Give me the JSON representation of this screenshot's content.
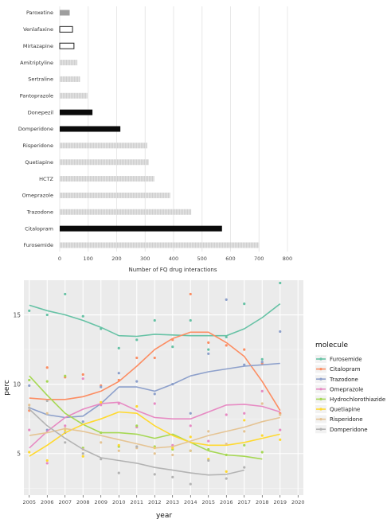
{
  "chart_data": [
    {
      "type": "bar",
      "orientation": "horizontal",
      "xlabel": "Number of FQ drug interactions",
      "ylabel": "",
      "xlim": [
        0,
        800
      ],
      "xticks": [
        0,
        100,
        200,
        300,
        400,
        500,
        600,
        700,
        800
      ],
      "grid": true,
      "categories": [
        "Paroxetine",
        "Venlafaxine",
        "Mirtazapine",
        "Amitriptyline",
        "Sertraline",
        "Pantoprazole",
        "Donepezil",
        "Domperidone",
        "Risperidone",
        "Quetiapine",
        "HCTZ",
        "Omeprazole",
        "Trazodone",
        "Citalopram",
        "Furosemide"
      ],
      "values": [
        35,
        45,
        50,
        62,
        72,
        97,
        115,
        213,
        308,
        313,
        332,
        388,
        462,
        570,
        700
      ],
      "bar_styles": [
        "gray-solid",
        "outline",
        "outline",
        "light-gray",
        "light-gray",
        "light-gray",
        "black",
        "black",
        "light-gray",
        "light-gray",
        "light-gray",
        "light-gray",
        "light-gray",
        "black",
        "light-gray"
      ]
    },
    {
      "type": "line",
      "xlabel": "year",
      "ylabel": "perc",
      "xlim": [
        2005,
        2020
      ],
      "ylim": [
        2,
        17.5
      ],
      "xticks": [
        2005,
        2006,
        2007,
        2008,
        2009,
        2010,
        2011,
        2012,
        2013,
        2014,
        2015,
        2016,
        2017,
        2018,
        2019,
        2020
      ],
      "yticks": [
        5,
        10,
        15
      ],
      "grid": true,
      "legend_title": "molecule",
      "legend_position": "right",
      "series": [
        {
          "name": "Furosemide",
          "color": "#66c2a5",
          "points": [
            [
              2005,
              15.3
            ],
            [
              2006,
              15.0
            ],
            [
              2007,
              16.5
            ],
            [
              2008,
              14.9
            ],
            [
              2009,
              14.0
            ],
            [
              2010,
              12.6
            ],
            [
              2011,
              13.2
            ],
            [
              2012,
              14.6
            ],
            [
              2013,
              12.7
            ],
            [
              2014,
              14.6
            ],
            [
              2015,
              12.5
            ],
            [
              2016,
              13.4
            ],
            [
              2017,
              15.8
            ],
            [
              2018,
              11.8
            ],
            [
              2019,
              17.3
            ]
          ],
          "trend": [
            [
              2005,
              15.7
            ],
            [
              2006,
              15.3
            ],
            [
              2007,
              15.0
            ],
            [
              2008,
              14.6
            ],
            [
              2009,
              14.1
            ],
            [
              2010,
              13.5
            ],
            [
              2011,
              13.45
            ],
            [
              2012,
              13.6
            ],
            [
              2013,
              13.55
            ],
            [
              2014,
              13.5
            ],
            [
              2015,
              13.5
            ],
            [
              2016,
              13.5
            ],
            [
              2017,
              14.0
            ],
            [
              2018,
              14.8
            ],
            [
              2019,
              15.8
            ]
          ]
        },
        {
          "name": "Citalopram",
          "color": "#fc8d62",
          "points": [
            [
              2005,
              8.1
            ],
            [
              2006,
              11.2
            ],
            [
              2007,
              10.5
            ],
            [
              2008,
              10.7
            ],
            [
              2009,
              9.9
            ],
            [
              2010,
              10.3
            ],
            [
              2011,
              11.9
            ],
            [
              2012,
              11.9
            ],
            [
              2013,
              13.2
            ],
            [
              2014,
              16.5
            ],
            [
              2015,
              13.0
            ],
            [
              2016,
              12.8
            ],
            [
              2017,
              12.5
            ],
            [
              2018,
              11.5
            ],
            [
              2019,
              7.9
            ]
          ],
          "trend": [
            [
              2005,
              9.0
            ],
            [
              2006,
              8.9
            ],
            [
              2007,
              8.9
            ],
            [
              2008,
              9.1
            ],
            [
              2009,
              9.5
            ],
            [
              2010,
              10.2
            ],
            [
              2011,
              11.3
            ],
            [
              2012,
              12.5
            ],
            [
              2013,
              13.3
            ],
            [
              2014,
              13.75
            ],
            [
              2015,
              13.75
            ],
            [
              2016,
              13.0
            ],
            [
              2017,
              12.0
            ],
            [
              2018,
              10.2
            ],
            [
              2019,
              8.1
            ]
          ]
        },
        {
          "name": "Trazodone",
          "color": "#8da0cb",
          "points": [
            [
              2005,
              9.9
            ],
            [
              2006,
              6.7
            ],
            [
              2007,
              6.5
            ],
            [
              2008,
              7.3
            ],
            [
              2009,
              9.8
            ],
            [
              2010,
              10.8
            ],
            [
              2011,
              10.2
            ],
            [
              2012,
              9.3
            ],
            [
              2013,
              10.0
            ],
            [
              2014,
              7.9
            ],
            [
              2015,
              12.2
            ],
            [
              2016,
              16.1
            ],
            [
              2017,
              11.4
            ],
            [
              2018,
              11.6
            ],
            [
              2019,
              13.8
            ]
          ],
          "trend": [
            [
              2005,
              8.3
            ],
            [
              2006,
              7.8
            ],
            [
              2007,
              7.6
            ],
            [
              2008,
              7.7
            ],
            [
              2009,
              8.6
            ],
            [
              2010,
              9.8
            ],
            [
              2011,
              9.8
            ],
            [
              2012,
              9.5
            ],
            [
              2013,
              10.0
            ],
            [
              2014,
              10.6
            ],
            [
              2015,
              10.9
            ],
            [
              2016,
              11.1
            ],
            [
              2017,
              11.3
            ],
            [
              2018,
              11.4
            ],
            [
              2019,
              11.5
            ]
          ]
        },
        {
          "name": "Omeprazole",
          "color": "#e78ac3",
          "points": [
            [
              2005,
              6.7
            ],
            [
              2006,
              4.3
            ],
            [
              2007,
              7.0
            ],
            [
              2008,
              10.4
            ],
            [
              2009,
              8.5
            ],
            [
              2010,
              8.6
            ],
            [
              2011,
              6.9
            ],
            [
              2012,
              8.6
            ],
            [
              2013,
              5.6
            ],
            [
              2014,
              7.0
            ],
            [
              2015,
              5.9
            ],
            [
              2016,
              7.8
            ],
            [
              2017,
              7.9
            ],
            [
              2018,
              9.5
            ],
            [
              2019,
              6.7
            ]
          ],
          "trend": [
            [
              2005,
              5.4
            ],
            [
              2006,
              6.6
            ],
            [
              2007,
              7.6
            ],
            [
              2008,
              8.2
            ],
            [
              2009,
              8.6
            ],
            [
              2010,
              8.7
            ],
            [
              2011,
              8.1
            ],
            [
              2012,
              7.6
            ],
            [
              2013,
              7.5
            ],
            [
              2014,
              7.5
            ],
            [
              2015,
              8.0
            ],
            [
              2016,
              8.5
            ],
            [
              2017,
              8.55
            ],
            [
              2018,
              8.4
            ],
            [
              2019,
              8.0
            ]
          ]
        },
        {
          "name": "Hydrochlorothiazide",
          "color": "#a6d854",
          "points": [
            [
              2005,
              10.3
            ],
            [
              2006,
              10.2
            ],
            [
              2007,
              10.6
            ],
            [
              2008,
              5.4
            ],
            [
              2009,
              6.5
            ],
            [
              2010,
              5.5
            ],
            [
              2011,
              7.0
            ],
            [
              2012,
              5.5
            ],
            [
              2013,
              5.3
            ],
            [
              2014,
              5.2
            ],
            [
              2015,
              5.3
            ],
            [
              2016,
              4.9
            ],
            [
              2017,
              5.6
            ],
            [
              2018,
              5.1
            ]
          ],
          "trend": [
            [
              2005,
              10.6
            ],
            [
              2006,
              9.2
            ],
            [
              2007,
              7.9
            ],
            [
              2008,
              7.1
            ],
            [
              2009,
              6.5
            ],
            [
              2010,
              6.5
            ],
            [
              2011,
              6.4
            ],
            [
              2012,
              6.1
            ],
            [
              2013,
              6.4
            ],
            [
              2014,
              5.8
            ],
            [
              2015,
              5.2
            ],
            [
              2016,
              4.9
            ],
            [
              2017,
              4.8
            ],
            [
              2018,
              4.6
            ]
          ]
        },
        {
          "name": "Quetiapine",
          "color": "#ffd92f",
          "points": [
            [
              2005,
              5.1
            ],
            [
              2006,
              4.5
            ],
            [
              2007,
              6.7
            ],
            [
              2008,
              4.8
            ],
            [
              2009,
              8.7
            ],
            [
              2010,
              5.6
            ],
            [
              2011,
              8.4
            ],
            [
              2012,
              5.4
            ],
            [
              2013,
              5.4
            ],
            [
              2014,
              6.2
            ],
            [
              2015,
              4.6
            ],
            [
              2016,
              3.7
            ],
            [
              2017,
              7.4
            ],
            [
              2018,
              6.3
            ],
            [
              2019,
              6.0
            ]
          ],
          "trend": [
            [
              2005,
              4.8
            ],
            [
              2006,
              5.6
            ],
            [
              2007,
              6.5
            ],
            [
              2008,
              7.1
            ],
            [
              2009,
              7.5
            ],
            [
              2010,
              8.0
            ],
            [
              2011,
              7.9
            ],
            [
              2012,
              7.0
            ],
            [
              2013,
              6.3
            ],
            [
              2014,
              5.8
            ],
            [
              2015,
              5.6
            ],
            [
              2016,
              5.6
            ],
            [
              2017,
              5.8
            ],
            [
              2018,
              6.1
            ],
            [
              2019,
              6.4
            ]
          ]
        },
        {
          "name": "Risperidone",
          "color": "#e5c494",
          "points": [
            [
              2005,
              8.5
            ],
            [
              2006,
              7.9
            ],
            [
              2007,
              6.8
            ],
            [
              2008,
              5.3
            ],
            [
              2009,
              5.8
            ],
            [
              2010,
              5.2
            ],
            [
              2011,
              5.4
            ],
            [
              2012,
              5.0
            ],
            [
              2013,
              4.9
            ],
            [
              2014,
              5.2
            ],
            [
              2015,
              6.6
            ],
            [
              2016,
              5.7
            ],
            [
              2017,
              6.6
            ],
            [
              2018,
              8.6
            ],
            [
              2019,
              7.8
            ]
          ],
          "trend": [
            [
              2005,
              6.3
            ],
            [
              2006,
              6.5
            ],
            [
              2007,
              6.8
            ],
            [
              2008,
              6.6
            ],
            [
              2009,
              6.3
            ],
            [
              2010,
              6.0
            ],
            [
              2011,
              5.7
            ],
            [
              2012,
              5.4
            ],
            [
              2013,
              5.5
            ],
            [
              2014,
              5.9
            ],
            [
              2015,
              6.3
            ],
            [
              2016,
              6.6
            ],
            [
              2017,
              6.9
            ],
            [
              2018,
              7.3
            ],
            [
              2019,
              7.6
            ]
          ]
        },
        {
          "name": "Domperidone",
          "color": "#b3b3b3",
          "points": [
            [
              2005,
              8.3
            ],
            [
              2006,
              8.8
            ],
            [
              2007,
              5.8
            ],
            [
              2008,
              5.0
            ],
            [
              2009,
              4.6
            ],
            [
              2010,
              3.6
            ],
            [
              2011,
              5.5
            ],
            [
              2012,
              3.5
            ],
            [
              2013,
              3.3
            ],
            [
              2014,
              2.8
            ],
            [
              2015,
              4.5
            ],
            [
              2016,
              3.2
            ],
            [
              2017,
              4.0
            ]
          ],
          "trend": [
            [
              2005,
              8.2
            ],
            [
              2006,
              7.0
            ],
            [
              2007,
              6.1
            ],
            [
              2008,
              5.3
            ],
            [
              2009,
              4.7
            ],
            [
              2010,
              4.5
            ],
            [
              2011,
              4.3
            ],
            [
              2012,
              4.0
            ],
            [
              2013,
              3.8
            ],
            [
              2014,
              3.6
            ],
            [
              2015,
              3.45
            ],
            [
              2016,
              3.5
            ],
            [
              2017,
              3.8
            ]
          ]
        }
      ]
    }
  ]
}
